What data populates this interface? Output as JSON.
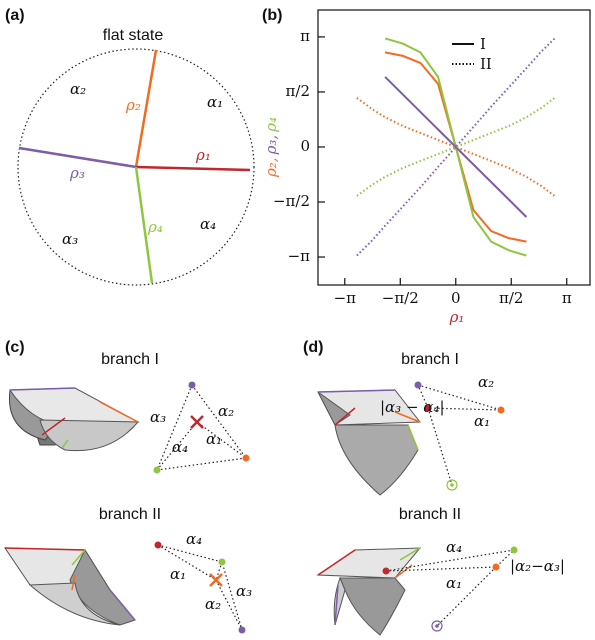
{
  "panels": {
    "a": {
      "label": "(a)",
      "title": "flat state",
      "sectors": [
        "α₂",
        "α₁",
        "α₃",
        "α₄"
      ],
      "folds": [
        "ρ₂",
        "ρ₁",
        "ρ₃",
        "ρ₄"
      ]
    },
    "c": {
      "label": "(c)",
      "branches": [
        {
          "title": "branch I",
          "edges": [
            "α₃",
            "α₂",
            "α₄",
            "α₁"
          ]
        },
        {
          "title": "branch II",
          "edges": [
            "α₄",
            "α₁",
            "α₂",
            "α₃"
          ]
        }
      ]
    },
    "d": {
      "label": "(d)",
      "branches": [
        {
          "title": "branch I",
          "edges": [
            "α₂",
            "α₁",
            "|α₃ − α₄|"
          ]
        },
        {
          "title": "branch II",
          "edges": [
            "α₄",
            "α₁",
            "|α₂−α₃|"
          ]
        }
      ]
    }
  },
  "chart_data": {
    "type": "line",
    "panel_label": "(b)",
    "xlabel": "ρ₁",
    "ylabel": [
      "ρ₂,",
      "ρ₃,",
      "ρ₄"
    ],
    "ylabel_colors": [
      "#f26b21",
      "#7b5ea7",
      "#8dc63f"
    ],
    "legend": [
      {
        "label": "I",
        "dash": "solid"
      },
      {
        "label": "II",
        "dash": "dotted"
      }
    ],
    "x": [
      -2.8,
      -2.4,
      -2.0,
      -1.5,
      -1.0,
      -0.5,
      0,
      0.5,
      1.0,
      1.5,
      2.0,
      2.4,
      2.8
    ],
    "series": [
      {
        "color": "#f26b21",
        "dash": "solid",
        "values": [
          null,
          null,
          2.7,
          2.6,
          2.4,
          1.8,
          0,
          -1.8,
          -2.4,
          -2.6,
          -2.7,
          null,
          null
        ]
      },
      {
        "color": "#8dc63f",
        "dash": "solid",
        "values": [
          null,
          null,
          3.1,
          2.95,
          2.7,
          2.0,
          0,
          -2.0,
          -2.7,
          -2.95,
          -3.1,
          null,
          null
        ]
      },
      {
        "color": "#7b5ea7",
        "dash": "solid",
        "values": [
          null,
          null,
          2.0,
          1.5,
          1.0,
          0.5,
          0,
          -0.5,
          -1.0,
          -1.5,
          -2.0,
          null,
          null
        ]
      },
      {
        "color": "#7b5ea7",
        "dash": "dotted",
        "values": [
          -3.1,
          -2.7,
          -2.25,
          -1.7,
          -1.15,
          -0.57,
          0,
          0.57,
          1.15,
          1.7,
          2.25,
          2.7,
          3.1
        ]
      },
      {
        "color": "#f26b21",
        "dash": "dotted",
        "values": [
          1.4,
          1.1,
          0.85,
          0.6,
          0.4,
          0.2,
          0,
          -0.2,
          -0.4,
          -0.6,
          -0.85,
          -1.1,
          -1.4
        ]
      },
      {
        "color": "#8dc63f",
        "dash": "dotted",
        "values": [
          -1.4,
          -1.1,
          -0.85,
          -0.6,
          -0.4,
          -0.2,
          0,
          0.2,
          0.4,
          0.6,
          0.85,
          1.1,
          1.4
        ]
      }
    ],
    "xlim": [
      -3.9,
      3.8
    ],
    "ylim": [
      -3.94,
      3.91
    ],
    "xticks": [
      {
        "value": -3.1416,
        "label": "−π"
      },
      {
        "value": -1.5708,
        "label": "−π/2"
      },
      0,
      {
        "value": 1.5708,
        "label": "π/2"
      },
      {
        "value": 3.1416,
        "label": "π"
      }
    ],
    "yticks": [
      {
        "value": -3.1416,
        "label": "−π"
      },
      {
        "value": -1.5708,
        "label": "−π/2"
      },
      0,
      {
        "value": 1.5708,
        "label": "π/2"
      },
      {
        "value": 3.1416,
        "label": "π"
      }
    ]
  }
}
